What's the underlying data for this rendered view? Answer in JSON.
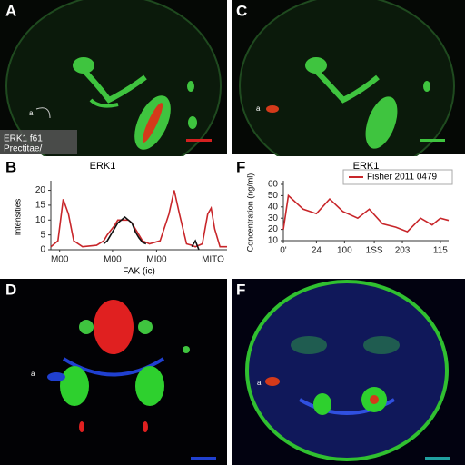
{
  "panels": [
    {
      "label": "A",
      "overlay": [
        "ERK1 f61",
        "Prectitae/"
      ],
      "marker": "a"
    },
    {
      "label": "C",
      "marker": "a"
    },
    {
      "label": "B"
    },
    {
      "label": "F"
    },
    {
      "label": "D",
      "marker": "a"
    },
    {
      "label": "F",
      "marker": "a"
    }
  ],
  "chart_data": [
    {
      "type": "line",
      "title": "ERK1",
      "x_label": "FAK (ic)",
      "y_label": "Intensities",
      "x": [
        0,
        4,
        7,
        10,
        13,
        18,
        26,
        30,
        32,
        36,
        38,
        42,
        44,
        46,
        48,
        50,
        52,
        54,
        56,
        62,
        67,
        70,
        73,
        77,
        80,
        82,
        84,
        86,
        89,
        91,
        93,
        96,
        100
      ],
      "xlim": [
        0,
        100
      ],
      "xticks": [
        {
          "value": 5,
          "label": "M00"
        },
        {
          "value": 35,
          "label": "M00"
        },
        {
          "value": 60,
          "label": "MI00"
        },
        {
          "value": 92,
          "label": "MITO"
        }
      ],
      "ylim": [
        0,
        22
      ],
      "yticks": [
        0,
        5,
        10,
        15,
        20
      ],
      "series": [
        {
          "color": "#c8262a",
          "values": [
            1,
            3,
            17,
            12,
            3,
            1,
            1.5,
            3,
            5,
            8,
            10,
            10,
            10,
            9,
            7,
            5,
            3,
            2.5,
            2,
            3,
            12,
            20,
            12,
            2,
            1.5,
            1,
            1.5,
            2,
            12,
            14,
            7,
            1,
            1
          ]
        },
        {
          "color": "#111111",
          "values": [
            null,
            null,
            null,
            null,
            null,
            null,
            null,
            2,
            3,
            7,
            9,
            11,
            10,
            9,
            6,
            4,
            2.5,
            2,
            null,
            null,
            null,
            null,
            null,
            null,
            1,
            3,
            0,
            null,
            null,
            null,
            null,
            null,
            null
          ]
        }
      ]
    },
    {
      "type": "line",
      "title": "ERK1",
      "y_label": "Concentration (ng/ml)",
      "x": [
        0,
        3,
        12,
        20,
        28,
        36,
        45,
        52,
        60,
        68,
        75,
        83,
        90,
        95,
        100
      ],
      "xlim": [
        0,
        100
      ],
      "xticks": [
        {
          "value": 0,
          "label": "0'"
        },
        {
          "value": 20,
          "label": "24"
        },
        {
          "value": 37,
          "label": "100"
        },
        {
          "value": 55,
          "label": "1SS"
        },
        {
          "value": 72,
          "label": "203"
        },
        {
          "value": 95,
          "label": "115"
        }
      ],
      "ylim": [
        10,
        60
      ],
      "yticks": [
        10,
        20,
        30,
        40,
        50,
        60
      ],
      "legend": "top-right",
      "series": [
        {
          "name": "Fisher 2011 0479",
          "color": "#c8262a",
          "values": [
            20,
            50,
            38,
            34,
            47,
            36,
            30,
            38,
            25,
            22,
            18,
            30,
            24,
            30,
            28
          ]
        }
      ]
    }
  ]
}
